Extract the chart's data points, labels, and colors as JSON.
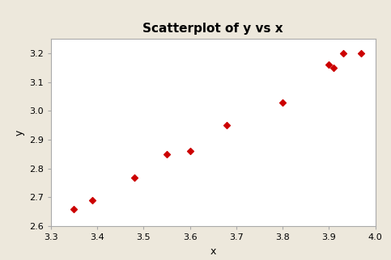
{
  "x": [
    3.35,
    3.39,
    3.48,
    3.55,
    3.6,
    3.68,
    3.8,
    3.9,
    3.91,
    3.93,
    3.97
  ],
  "y": [
    2.66,
    2.69,
    2.77,
    2.85,
    2.86,
    2.95,
    3.03,
    3.16,
    3.15,
    3.2,
    3.2
  ],
  "title": "Scatterplot of y vs x",
  "xlabel": "x",
  "ylabel": "y",
  "xlim": [
    3.3,
    4.0
  ],
  "ylim": [
    2.6,
    3.25
  ],
  "xticks": [
    3.3,
    3.4,
    3.5,
    3.6,
    3.7,
    3.8,
    3.9,
    4.0
  ],
  "yticks": [
    2.6,
    2.7,
    2.8,
    2.9,
    3.0,
    3.1,
    3.2
  ],
  "marker_color": "#cc0000",
  "marker": "D",
  "marker_size": 4,
  "bg_outer": "#ede8dc",
  "bg_inner": "#ffffff",
  "title_fontsize": 11,
  "label_fontsize": 9,
  "tick_fontsize": 8,
  "spine_color": "#aaaaaa",
  "tick_color": "#555555"
}
